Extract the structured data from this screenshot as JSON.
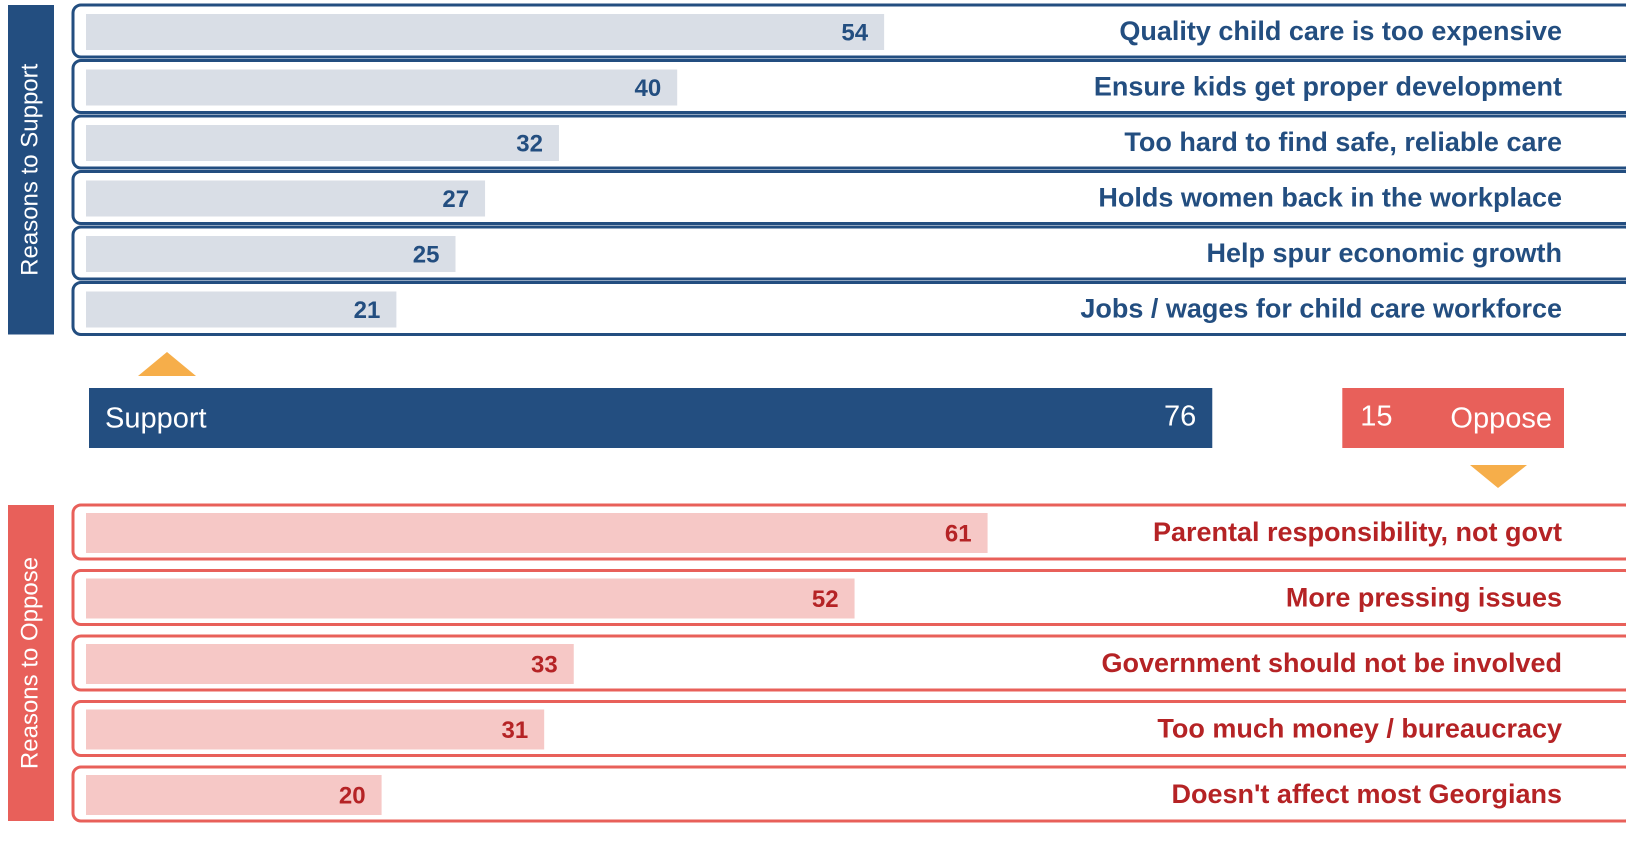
{
  "chart_data": [
    {
      "type": "bar",
      "title": "Reasons to Support",
      "categories": [
        "Quality child care is too expensive",
        "Ensure kids get proper development",
        "Too hard to find safe, reliable care",
        "Holds women back in the workplace",
        "Help spur economic growth",
        "Jobs / wages for child care workforce"
      ],
      "values": [
        54,
        40,
        32,
        27,
        25,
        21
      ],
      "color": "#d9dee6",
      "text_color": "#234e80",
      "xlim": [
        0,
        100
      ]
    },
    {
      "type": "diverging",
      "categories": [
        "Support",
        "Oppose"
      ],
      "values": [
        76,
        15
      ],
      "colors": [
        "#234e80",
        "#e8605a"
      ],
      "xlim": [
        0,
        100
      ]
    },
    {
      "type": "bar",
      "title": "Reasons to Oppose",
      "categories": [
        "Parental responsibility, not govt",
        "More pressing issues",
        "Government should not be involved",
        "Too much money / bureaucracy",
        "Doesn't affect most Georgians"
      ],
      "values": [
        61,
        52,
        33,
        31,
        20
      ],
      "color": "#f6c8c6",
      "text_color": "#b52325",
      "xlim": [
        0,
        100
      ]
    }
  ]
}
